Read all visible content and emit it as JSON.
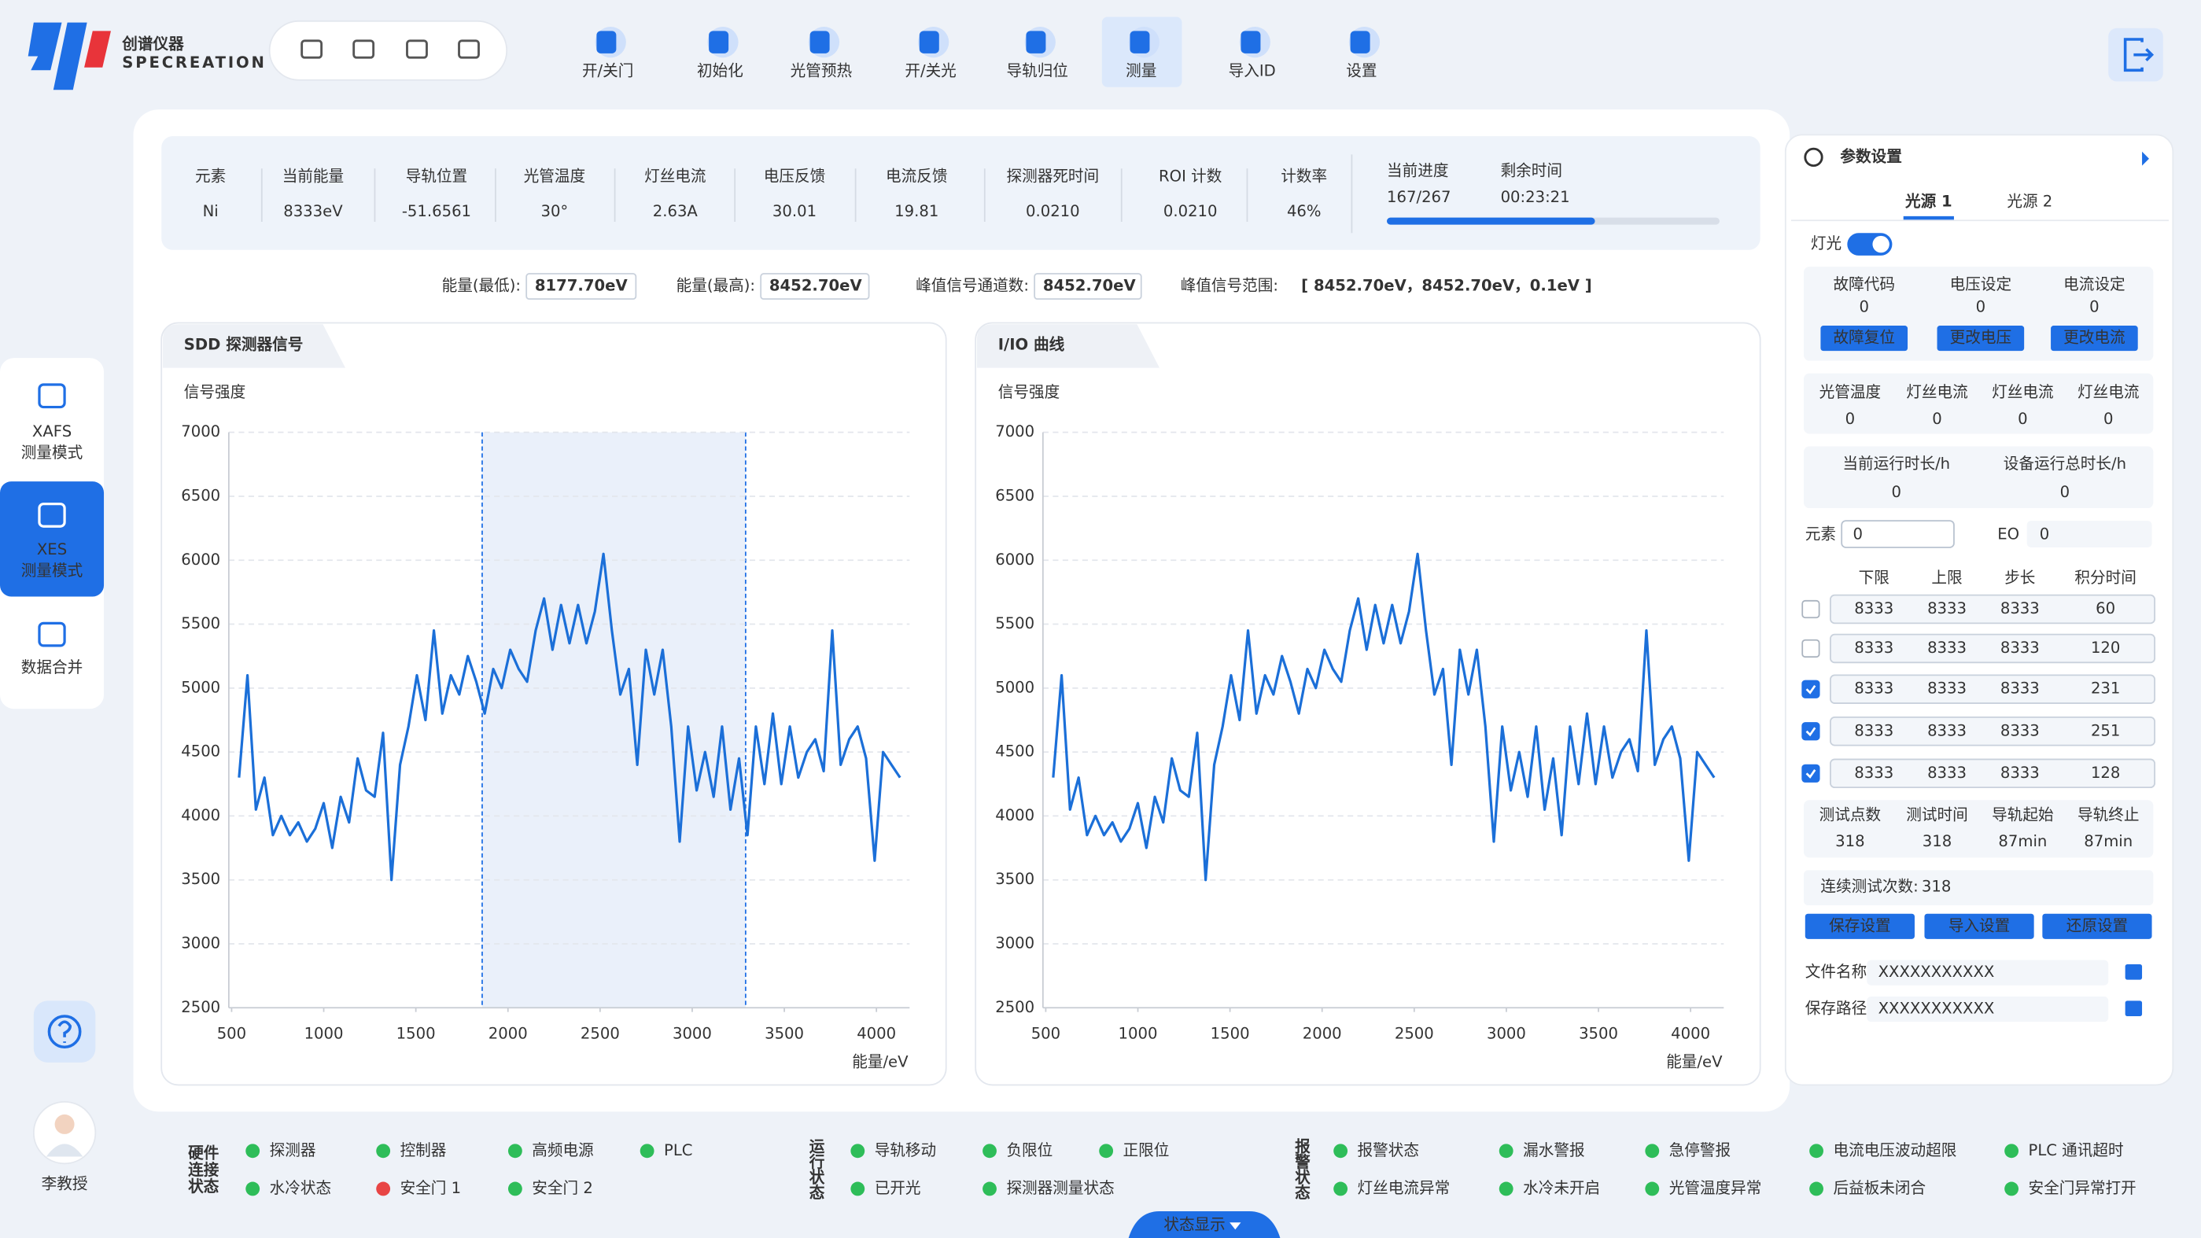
{
  "header": {
    "logo_cn": "创谱仪器",
    "logo_en": "SPECREATION",
    "toolbar": [
      "开/关门",
      "初始化",
      "光管预热",
      "开/关光",
      "导轨归位",
      "测量",
      "导入ID",
      "设置"
    ]
  },
  "sidebar": {
    "modes": [
      {
        "name": "XAFS",
        "sub": "测量模式"
      },
      {
        "name": "XES",
        "sub": "测量模式"
      },
      {
        "name": "数据合并"
      }
    ],
    "user": "李教授"
  },
  "metrics": [
    {
      "label": "元素",
      "value": "Ni"
    },
    {
      "label": "当前能量",
      "value": "8333eV"
    },
    {
      "label": "导轨位置",
      "value": "-51.6561"
    },
    {
      "label": "光管温度",
      "value": "30°"
    },
    {
      "label": "灯丝电流",
      "value": "2.63A"
    },
    {
      "label": "电压反馈",
      "value": "30.01"
    },
    {
      "label": "电流反馈",
      "value": "19.81"
    },
    {
      "label": "探测器死时间",
      "value": "0.0210"
    },
    {
      "label": "ROI 计数",
      "value": "0.0210"
    },
    {
      "label": "计数率",
      "value": "46%"
    }
  ],
  "progress": {
    "label": "当前进度",
    "current": 167,
    "separator": "/",
    "total": 267,
    "remaining_label": "剩余时间",
    "remaining": "00:23:21"
  },
  "energy_row": [
    {
      "label": "能量(最低):",
      "value": "8177.70eV"
    },
    {
      "label": "能量(最高):",
      "value": "8452.70eV"
    },
    {
      "label": "峰值信号通道数:",
      "value": "8452.70eV"
    },
    {
      "label": "峰值信号范围:",
      "value": "[ 8452.70eV，8452.70eV，0.1eV ]"
    }
  ],
  "chart_data": [
    {
      "type": "line",
      "title": "SDD 探测器信号",
      "y_label": "信号强度",
      "x_label": "能量/eV",
      "color": "#1b6fd8",
      "highlight": [
        1860,
        3290
      ],
      "xlim": [
        500,
        4180
      ],
      "xticks": [
        500,
        1000,
        1500,
        2000,
        2500,
        3000,
        3500,
        4000
      ],
      "ylim": [
        2500,
        7000
      ],
      "yticks": [
        2500,
        3000,
        3500,
        4000,
        4500,
        5000,
        5500,
        6000,
        6500,
        7000
      ],
      "grid": true,
      "x": [
        540,
        586,
        632,
        678,
        724,
        770,
        816,
        862,
        908,
        954,
        1000,
        1046,
        1092,
        1138,
        1184,
        1230,
        1276,
        1322,
        1368,
        1414,
        1460,
        1506,
        1552,
        1598,
        1644,
        1690,
        1736,
        1782,
        1828,
        1874,
        1920,
        1966,
        2012,
        2058,
        2104,
        2150,
        2196,
        2242,
        2288,
        2334,
        2380,
        2426,
        2472,
        2518,
        2564,
        2610,
        2656,
        2702,
        2748,
        2794,
        2840,
        2886,
        2932,
        2978,
        3024,
        3070,
        3116,
        3162,
        3208,
        3254,
        3300,
        3346,
        3392,
        3438,
        3484,
        3530,
        3576,
        3622,
        3668,
        3714,
        3760,
        3806,
        3852,
        3898,
        3944,
        3990,
        4036,
        4082,
        4128
      ],
      "values": [
        4300,
        5100,
        4050,
        4300,
        3850,
        4000,
        3850,
        3950,
        3800,
        3900,
        4100,
        3750,
        4150,
        3950,
        4450,
        4200,
        4150,
        4650,
        3500,
        4400,
        4700,
        5100,
        4750,
        5450,
        4800,
        5100,
        4950,
        5250,
        5050,
        4800,
        5150,
        5000,
        5300,
        5150,
        5050,
        5450,
        5700,
        5300,
        5650,
        5350,
        5650,
        5350,
        5600,
        6050,
        5450,
        4950,
        5150,
        4400,
        5300,
        4950,
        5300,
        4700,
        3800,
        4700,
        4200,
        4500,
        4150,
        4700,
        4050,
        4450,
        3850,
        4700,
        4250,
        4800,
        4250,
        4700,
        4300,
        4500,
        4600,
        4350,
        5450,
        4400,
        4600,
        4700,
        4450,
        3650,
        4500,
        4400,
        4300
      ]
    },
    {
      "type": "line",
      "title": "I/IO 曲线",
      "y_label": "信号强度",
      "x_label": "能量/eV",
      "color": "#1b6fd8",
      "xlim": [
        500,
        4180
      ],
      "xticks": [
        500,
        1000,
        1500,
        2000,
        2500,
        3000,
        3500,
        4000
      ],
      "ylim": [
        2500,
        7000
      ],
      "yticks": [
        2500,
        3000,
        3500,
        4000,
        4500,
        5000,
        5500,
        6000,
        6500,
        7000
      ],
      "grid": true,
      "x": [
        540,
        586,
        632,
        678,
        724,
        770,
        816,
        862,
        908,
        954,
        1000,
        1046,
        1092,
        1138,
        1184,
        1230,
        1276,
        1322,
        1368,
        1414,
        1460,
        1506,
        1552,
        1598,
        1644,
        1690,
        1736,
        1782,
        1828,
        1874,
        1920,
        1966,
        2012,
        2058,
        2104,
        2150,
        2196,
        2242,
        2288,
        2334,
        2380,
        2426,
        2472,
        2518,
        2564,
        2610,
        2656,
        2702,
        2748,
        2794,
        2840,
        2886,
        2932,
        2978,
        3024,
        3070,
        3116,
        3162,
        3208,
        3254,
        3300,
        3346,
        3392,
        3438,
        3484,
        3530,
        3576,
        3622,
        3668,
        3714,
        3760,
        3806,
        3852,
        3898,
        3944,
        3990,
        4036,
        4082,
        4128
      ],
      "values": [
        4300,
        5100,
        4050,
        4300,
        3850,
        4000,
        3850,
        3950,
        3800,
        3900,
        4100,
        3750,
        4150,
        3950,
        4450,
        4200,
        4150,
        4650,
        3500,
        4400,
        4700,
        5100,
        4750,
        5450,
        4800,
        5100,
        4950,
        5250,
        5050,
        4800,
        5150,
        5000,
        5300,
        5150,
        5050,
        5450,
        5700,
        5300,
        5650,
        5350,
        5650,
        5350,
        5600,
        6050,
        5450,
        4950,
        5150,
        4400,
        5300,
        4950,
        5300,
        4700,
        3800,
        4700,
        4200,
        4500,
        4150,
        4700,
        4050,
        4450,
        3850,
        4700,
        4250,
        4800,
        4250,
        4700,
        4300,
        4500,
        4600,
        4350,
        5450,
        4400,
        4600,
        4700,
        4450,
        3650,
        4500,
        4400,
        4300
      ]
    }
  ],
  "params": {
    "title": "参数设置",
    "tabs": [
      "光源 1",
      "光源 2"
    ],
    "lamp_label": "灯光",
    "lamp_on": true,
    "block1": [
      {
        "label": "故障代码",
        "value": "0",
        "button": "故障复位"
      },
      {
        "label": "电压设定",
        "value": "0",
        "button": "更改电压"
      },
      {
        "label": "电流设定",
        "value": "0",
        "button": "更改电流"
      }
    ],
    "block2": [
      {
        "label": "光管温度",
        "value": "0"
      },
      {
        "label": "灯丝电流",
        "value": "0"
      },
      {
        "label": "灯丝电流",
        "value": "0"
      },
      {
        "label": "灯丝电流",
        "value": "0"
      }
    ],
    "block3": [
      {
        "label": "当前运行时长/h",
        "value": "0"
      },
      {
        "label": "设备运行总时长/h",
        "value": "0"
      }
    ],
    "element": {
      "label": "元素",
      "value": "0"
    },
    "eo": {
      "label": "EO",
      "value": "0"
    },
    "table": {
      "headers": [
        "下限",
        "上限",
        "步长",
        "积分时间"
      ],
      "rows": [
        {
          "checked": false,
          "cells": [
            "8333",
            "8333",
            "8333",
            "60"
          ]
        },
        {
          "checked": false,
          "cells": [
            "8333",
            "8333",
            "8333",
            "120"
          ]
        },
        {
          "checked": true,
          "cells": [
            "8333",
            "8333",
            "8333",
            "231"
          ]
        },
        {
          "checked": true,
          "cells": [
            "8333",
            "8333",
            "8333",
            "251"
          ]
        },
        {
          "checked": true,
          "cells": [
            "8333",
            "8333",
            "8333",
            "128"
          ]
        }
      ]
    },
    "block4": [
      {
        "label": "测试点数",
        "value": "318"
      },
      {
        "label": "测试时间",
        "value": "318"
      },
      {
        "label": "导轨起始",
        "value": "87min"
      },
      {
        "label": "导轨终止",
        "value": "87min"
      }
    ],
    "continuous": {
      "label": "连续测试次数:",
      "value": "318"
    },
    "buttons": [
      "保存设置",
      "导入设置",
      "还原设置"
    ],
    "files": [
      {
        "label": "文件名称",
        "value": "XXXXXXXXXXX"
      },
      {
        "label": "保存路径",
        "value": "XXXXXXXXXXX"
      }
    ]
  },
  "status": {
    "toggle": "状态显示",
    "groups": [
      {
        "title": [
          "硬件",
          "连接",
          "状态"
        ],
        "rows": [
          [
            {
              "name": "探测器",
              "color": "#2ebd59"
            },
            {
              "name": "控制器",
              "color": "#2ebd59"
            },
            {
              "name": "高频电源",
              "color": "#2ebd59"
            },
            {
              "name": "PLC",
              "color": "#2ebd59"
            }
          ],
          [
            {
              "name": "水冷状态",
              "color": "#2ebd59"
            },
            {
              "name": "安全门 1",
              "color": "#e84545"
            },
            {
              "name": "安全门 2",
              "color": "#2ebd59"
            }
          ]
        ]
      },
      {
        "title": [
          "运",
          "行",
          "状",
          "态"
        ],
        "rows": [
          [
            {
              "name": "导轨移动",
              "color": "#2ebd59"
            },
            {
              "name": "负限位",
              "color": "#2ebd59"
            },
            {
              "name": "正限位",
              "color": "#2ebd59"
            }
          ],
          [
            {
              "name": "已开光",
              "color": "#2ebd59"
            },
            {
              "name": "探测器测量状态",
              "color": "#2ebd59"
            }
          ]
        ]
      },
      {
        "title": [
          "报",
          "警",
          "状",
          "态"
        ],
        "rows": [
          [
            {
              "name": "报警状态",
              "color": "#2ebd59"
            },
            {
              "name": "漏水警报",
              "color": "#2ebd59"
            },
            {
              "name": "急停警报",
              "color": "#2ebd59"
            },
            {
              "name": "电流电压波动超限",
              "color": "#2ebd59"
            },
            {
              "name": "PLC 通讯超时",
              "color": "#2ebd59"
            }
          ],
          [
            {
              "name": "灯丝电流异常",
              "color": "#2ebd59"
            },
            {
              "name": "水冷未开启",
              "color": "#2ebd59"
            },
            {
              "name": "光管温度异常",
              "color": "#2ebd59"
            },
            {
              "name": "后益板未闭合",
              "color": "#2ebd59"
            },
            {
              "name": "安全门异常打开",
              "color": "#2ebd59"
            }
          ]
        ]
      }
    ]
  }
}
